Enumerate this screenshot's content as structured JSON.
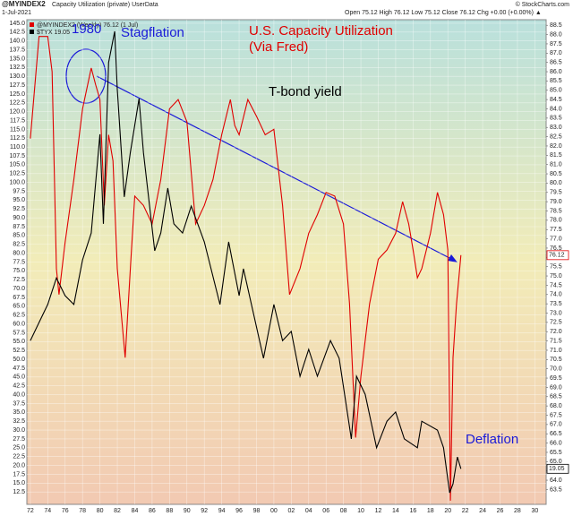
{
  "header": {
    "symbol": "@MYINDEX2",
    "description": "Capacity Utilization (private) UserData",
    "date": "1-Jul-2021",
    "ohlc": "Open 75.12 High 76.12 Low 75.12 Close 76.12 Chg +0.00 (+0.00%) ▲",
    "credit": "© StockCharts.com"
  },
  "chart_data": {
    "type": "line",
    "annotations": [
      "1980",
      "Stagflation",
      "U.S. Capacity Utilization (Via Fred)",
      "T-bond yield",
      "Deflation"
    ],
    "xlim": [
      1971.6,
      2031.3
    ],
    "xticks": [
      {
        "value": 1972,
        "label": "72"
      },
      {
        "value": 1974,
        "label": "74"
      },
      {
        "value": 1976,
        "label": "76"
      },
      {
        "value": 1978,
        "label": "78"
      },
      {
        "value": 1980,
        "label": "80"
      },
      {
        "value": 1982,
        "label": "82"
      },
      {
        "value": 1984,
        "label": "84"
      },
      {
        "value": 1986,
        "label": "86"
      },
      {
        "value": 1988,
        "label": "88"
      },
      {
        "value": 1990,
        "label": "90"
      },
      {
        "value": 1992,
        "label": "92"
      },
      {
        "value": 1994,
        "label": "94"
      },
      {
        "value": 1996,
        "label": "96"
      },
      {
        "value": 1998,
        "label": "98"
      },
      {
        "value": 2000,
        "label": "00"
      },
      {
        "value": 2002,
        "label": "02"
      },
      {
        "value": 2004,
        "label": "04"
      },
      {
        "value": 2006,
        "label": "06"
      },
      {
        "value": 2008,
        "label": "08"
      },
      {
        "value": 2010,
        "label": "10"
      },
      {
        "value": 2012,
        "label": "12"
      },
      {
        "value": 2014,
        "label": "14"
      },
      {
        "value": 2016,
        "label": "16"
      },
      {
        "value": 2018,
        "label": "18"
      },
      {
        "value": 2020,
        "label": "20"
      },
      {
        "value": 2022,
        "label": "22"
      },
      {
        "value": 2024,
        "label": "24"
      },
      {
        "value": 2026,
        "label": "26"
      },
      {
        "value": 2028,
        "label": "28"
      },
      {
        "value": 2030,
        "label": "30"
      }
    ],
    "ylim": [
      9,
      146
    ],
    "yticks": [
      12.5,
      {
        "value": 15,
        "label": "15.0"
      },
      17.5,
      {
        "value": 20,
        "label": "20.0"
      },
      22.5,
      {
        "value": 25,
        "label": "25.0"
      },
      27.5,
      {
        "value": 30,
        "label": "30.0"
      },
      32.5,
      {
        "value": 35,
        "label": "35.0"
      },
      37.5,
      {
        "value": 40,
        "label": "40.0"
      },
      42.5,
      {
        "value": 45,
        "label": "45.0"
      },
      47.5,
      {
        "value": 50,
        "label": "50.0"
      },
      52.5,
      {
        "value": 55,
        "label": "55.0"
      },
      57.5,
      {
        "value": 60,
        "label": "60.0"
      },
      62.5,
      {
        "value": 65,
        "label": "65.0"
      },
      67.5,
      {
        "value": 70,
        "label": "70.0"
      },
      72.5,
      {
        "value": 75,
        "label": "75.0"
      },
      77.5,
      {
        "value": 80,
        "label": "80.0"
      },
      82.5,
      {
        "value": 85,
        "label": "85.0"
      },
      87.5,
      {
        "value": 90,
        "label": "90.0"
      },
      92.5,
      {
        "value": 95,
        "label": "95.0"
      },
      97.5,
      {
        "value": 100,
        "label": "100.0"
      },
      102.5,
      {
        "value": 105,
        "label": "105.0"
      },
      107.5,
      {
        "value": 110,
        "label": "110.0"
      },
      112.5,
      {
        "value": 115,
        "label": "115.0"
      },
      117.5,
      {
        "value": 120,
        "label": "120.0"
      },
      122.5,
      {
        "value": 125,
        "label": "125.0"
      },
      127.5,
      {
        "value": 130,
        "label": "130.0"
      },
      132.5,
      {
        "value": 135,
        "label": "135.0"
      },
      137.5,
      {
        "value": 140,
        "label": "140.0"
      },
      142.5,
      {
        "value": 145,
        "label": "145.0"
      }
    ],
    "y2lim": [
      62.7,
      88.8
    ],
    "y2ticks": [
      63.5,
      {
        "value": 64,
        "label": "64.0"
      },
      64.5,
      {
        "value": 65,
        "label": "65.0"
      },
      65.5,
      {
        "value": 66,
        "label": "66.0"
      },
      66.5,
      {
        "value": 67,
        "label": "67.0"
      },
      67.5,
      {
        "value": 68,
        "label": "68.0"
      },
      68.5,
      {
        "value": 69,
        "label": "69.0"
      },
      69.5,
      {
        "value": 70,
        "label": "70.0"
      },
      70.5,
      {
        "value": 71,
        "label": "71.0"
      },
      71.5,
      {
        "value": 72,
        "label": "72.0"
      },
      72.5,
      {
        "value": 73,
        "label": "73.0"
      },
      73.5,
      {
        "value": 74,
        "label": "74.0"
      },
      74.5,
      {
        "value": 75,
        "label": "75.0"
      },
      75.5,
      {
        "value": 76,
        "label": "76.0"
      },
      76.5,
      {
        "value": 77,
        "label": "77.0"
      },
      77.5,
      {
        "value": 78,
        "label": "78.0"
      },
      78.5,
      {
        "value": 79,
        "label": "79.0"
      },
      79.5,
      {
        "value": 80,
        "label": "80.0"
      },
      80.5,
      {
        "value": 81,
        "label": "81.0"
      },
      81.5,
      {
        "value": 82,
        "label": "82.0"
      },
      82.5,
      {
        "value": 83,
        "label": "83.0"
      },
      83.5,
      {
        "value": 84,
        "label": "84.0"
      },
      84.5,
      {
        "value": 85,
        "label": "85.0"
      },
      85.5,
      {
        "value": 86,
        "label": "86.0"
      },
      86.5,
      {
        "value": 87,
        "label": "87.0"
      },
      87.5,
      {
        "value": 88,
        "label": "88.0"
      },
      88.5
    ],
    "grid": true,
    "series": [
      {
        "name": "@MYINDEX2 (Weekly) 76.12 (1 Jul)",
        "color": "#e00000",
        "axis": "y2",
        "x": [
          1972,
          1973,
          1974,
          1974.5,
          1975,
          1975.3,
          1976,
          1977,
          1978,
          1979,
          1979.5,
          1980,
          1980.5,
          1981,
          1981.5,
          1982,
          1982.9,
          1983.5,
          1984,
          1985,
          1986,
          1987,
          1988,
          1989,
          1990,
          1991,
          1992,
          1993,
          1994,
          1995,
          1995.5,
          1996,
          1997,
          1998,
          1999,
          2000,
          2001,
          2001.8,
          2003,
          2004,
          2005,
          2006,
          2007,
          2008,
          2008.7,
          2009.4,
          2010,
          2011,
          2012,
          2013,
          2014,
          2014.8,
          2015.5,
          2016,
          2016.5,
          2017,
          2018,
          2018.8,
          2019.5,
          2020,
          2020.3,
          2020.6,
          2021,
          2021.5
        ],
        "values": [
          82.4,
          87.9,
          87.9,
          86,
          75.4,
          74,
          76.8,
          80.2,
          84,
          86.2,
          85.3,
          84.5,
          78.8,
          82.6,
          81.2,
          75.4,
          70.6,
          75.4,
          79.3,
          78.8,
          77.8,
          80.2,
          84,
          84.5,
          83.3,
          77.8,
          78.8,
          80.2,
          82.6,
          84.5,
          83.1,
          82.6,
          84.5,
          83.6,
          82.6,
          82.9,
          78.8,
          74,
          75.4,
          77.3,
          78.3,
          79.5,
          79.3,
          77.8,
          73.5,
          66.3,
          69.6,
          73.5,
          75.9,
          76.4,
          77.3,
          79,
          77.8,
          76.4,
          74.9,
          75.4,
          77.3,
          79.5,
          78.3,
          76.4,
          62.9,
          70.6,
          73.5,
          76.12
        ]
      },
      {
        "name": "$TYX 19.05",
        "color": "#000000",
        "axis": "y",
        "x": [
          1972,
          1973,
          1974,
          1975,
          1976,
          1977,
          1978,
          1979,
          1980,
          1980.4,
          1981,
          1981.7,
          1982,
          1982.8,
          1983.5,
          1984.5,
          1985,
          1986.3,
          1987,
          1987.8,
          1988.5,
          1989.5,
          1990.5,
          1992,
          1993.8,
          1994.8,
          1996,
          1996.5,
          1998.8,
          2000,
          2001,
          2002,
          2003,
          2004,
          2005,
          2006.5,
          2007.5,
          2008.9,
          2009.5,
          2010.5,
          2011.8,
          2013,
          2014,
          2015,
          2016.5,
          2017,
          2018.8,
          2019.5,
          2020.2,
          2020.6,
          2021.1,
          2021.5
        ],
        "values": [
          55.3,
          60.4,
          65.5,
          73,
          68,
          65.5,
          78.1,
          85.7,
          113.6,
          88.3,
          133.9,
          142.7,
          126.3,
          95.9,
          108.5,
          123.7,
          108.5,
          80.7,
          85.7,
          98.4,
          88.3,
          85.7,
          93.3,
          83.2,
          65.5,
          83.2,
          68,
          75.6,
          50.3,
          65.5,
          55.3,
          57.9,
          45.2,
          52.8,
          45.2,
          55.3,
          50.3,
          27.5,
          45.2,
          40.1,
          25,
          32.5,
          35.1,
          27.5,
          25,
          32.5,
          30,
          25,
          12.3,
          14.8,
          22.4,
          19.05
        ]
      }
    ]
  }
}
